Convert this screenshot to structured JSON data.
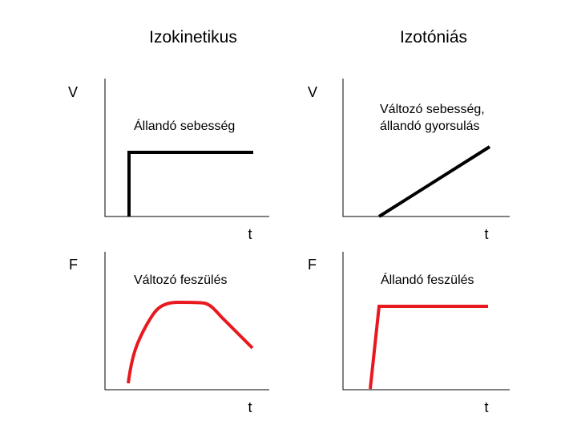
{
  "columns": [
    {
      "title": "Izokinetikus",
      "velocity_panel": {
        "y_label": "V",
        "x_label": "t",
        "caption": [
          "Állandó sebesség"
        ]
      },
      "force_panel": {
        "y_label": "F",
        "x_label": "t",
        "caption": [
          "Változó feszülés"
        ]
      }
    },
    {
      "title": "Izotóniás",
      "velocity_panel": {
        "y_label": "V",
        "x_label": "t",
        "caption": [
          "Változó sebesség,",
          "állandó gyorsulás"
        ]
      },
      "force_panel": {
        "y_label": "F",
        "x_label": "t",
        "caption": [
          "Állandó feszülés"
        ]
      }
    }
  ],
  "colors": {
    "axis": "#000000",
    "velocity_curve": "#000000",
    "force_curve": "#e8191e"
  }
}
